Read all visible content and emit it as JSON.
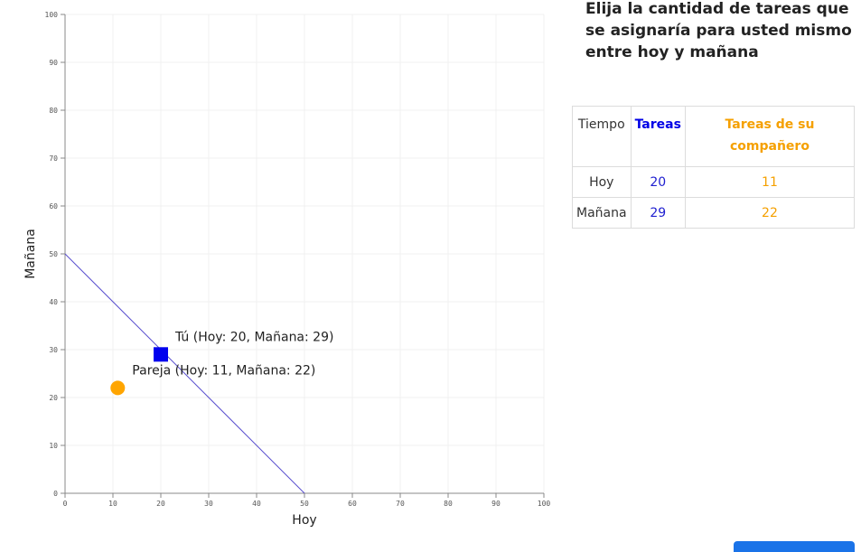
{
  "chart_data": {
    "type": "scatter",
    "xlabel": "Hoy",
    "ylabel": "Mañana",
    "xlim": [
      0,
      100
    ],
    "ylim": [
      0,
      100
    ],
    "xticks": [
      0,
      10,
      20,
      30,
      40,
      50,
      60,
      70,
      80,
      90,
      100
    ],
    "yticks": [
      0,
      10,
      20,
      30,
      40,
      50,
      60,
      70,
      80,
      90,
      100
    ],
    "grid": true,
    "budget_line": {
      "x": [
        0,
        50
      ],
      "y": [
        50,
        0
      ],
      "color": "#5a4fcf"
    },
    "series": [
      {
        "name": "Tú",
        "label": "Tú (Hoy: 20, Mañana: 29)",
        "x": 20,
        "y": 29,
        "marker": "square",
        "color": "#0000ee"
      },
      {
        "name": "Pareja",
        "label": "Pareja (Hoy: 11, Mañana: 22)",
        "x": 11,
        "y": 22,
        "marker": "circle",
        "color": "#ffa500"
      }
    ]
  },
  "panel": {
    "title": "Elija la cantidad de tareas que se asignaría para usted mismo entre hoy y mañana"
  },
  "table": {
    "headers": [
      "Tiempo",
      "Tareas",
      "Tareas de su compañero"
    ],
    "rows": [
      [
        "Hoy",
        "20",
        "11"
      ],
      [
        "Mañana",
        "29",
        "22"
      ]
    ]
  },
  "colors": {
    "blue": "#0000e6",
    "orange": "#f5a000"
  }
}
